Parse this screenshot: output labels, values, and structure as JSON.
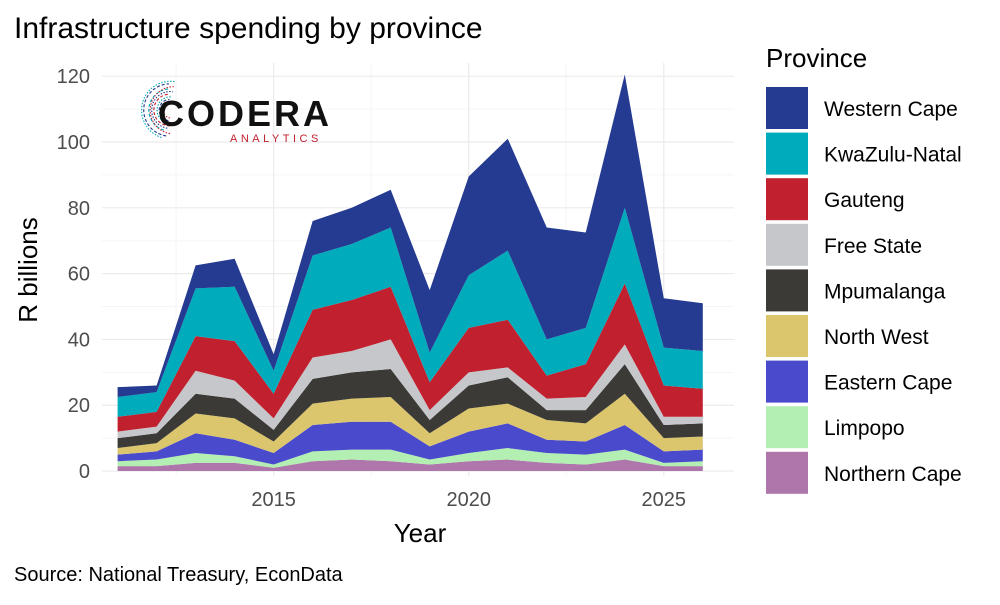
{
  "chart_data": {
    "type": "area",
    "title": "Infrastructure spending by province",
    "xlabel": "Year",
    "ylabel": "R billions",
    "caption": "Source: National Treasury, EconData",
    "legend_title": "Province",
    "legend_position": "right",
    "stacked": true,
    "grid": true,
    "xlim": [
      2010.6,
      2026.8
    ],
    "ylim": [
      -1.5,
      124
    ],
    "x_ticks": [
      2015,
      2020,
      2025
    ],
    "y_ticks": [
      0,
      20,
      40,
      60,
      80,
      100,
      120
    ],
    "x": [
      2011,
      2012,
      2013,
      2014,
      2015,
      2016,
      2017,
      2018,
      2019,
      2020,
      2021,
      2022,
      2023,
      2024,
      2025,
      2026
    ],
    "series": [
      {
        "name": "Northern Cape",
        "color": "#AE76AA",
        "values": [
          1.5,
          1.5,
          2.5,
          2.5,
          1.0,
          3.0,
          3.5,
          3.0,
          2.0,
          3.0,
          3.5,
          2.5,
          2.0,
          3.5,
          1.5,
          1.5
        ]
      },
      {
        "name": "Limpopo",
        "color": "#B3EEB3",
        "values": [
          1.5,
          2.0,
          3.0,
          2.0,
          1.0,
          3.0,
          3.0,
          3.5,
          1.5,
          2.5,
          3.5,
          3.0,
          3.0,
          3.0,
          1.0,
          1.5
        ]
      },
      {
        "name": "Eastern Cape",
        "color": "#4A4ACD",
        "values": [
          2.0,
          2.5,
          6.0,
          5.0,
          3.5,
          8.0,
          8.5,
          8.5,
          4.0,
          6.5,
          7.5,
          4.0,
          4.0,
          7.5,
          3.5,
          3.5
        ]
      },
      {
        "name": "North West",
        "color": "#DBC66E",
        "values": [
          2.0,
          2.5,
          6.0,
          6.5,
          3.5,
          6.5,
          7.0,
          7.5,
          4.0,
          7.0,
          6.0,
          6.0,
          5.5,
          9.5,
          4.0,
          4.0
        ]
      },
      {
        "name": "Mpumalanga",
        "color": "#3C3A36",
        "values": [
          3.0,
          3.0,
          6.0,
          6.0,
          3.5,
          7.5,
          8.0,
          8.5,
          4.0,
          7.0,
          8.0,
          3.0,
          4.0,
          9.0,
          4.0,
          4.0
        ]
      },
      {
        "name": "Free State",
        "color": "#C5C7CB",
        "values": [
          2.0,
          2.0,
          7.0,
          5.5,
          3.5,
          6.5,
          6.5,
          9.0,
          3.0,
          4.0,
          3.0,
          3.5,
          4.0,
          6.0,
          2.5,
          2.0
        ]
      },
      {
        "name": "Gauteng",
        "color": "#C1202F",
        "values": [
          4.5,
          4.5,
          10.5,
          12.0,
          7.5,
          14.5,
          15.5,
          16.0,
          8.5,
          13.5,
          14.5,
          7.0,
          10.0,
          18.5,
          9.5,
          8.5
        ]
      },
      {
        "name": "KwaZulu-Natal",
        "color": "#00ACBC",
        "values": [
          6.0,
          6.0,
          14.5,
          16.5,
          7.0,
          16.5,
          17.0,
          18.0,
          9.0,
          16.0,
          21.0,
          11.0,
          11.0,
          23.0,
          11.5,
          11.5
        ]
      },
      {
        "name": "Western Cape",
        "color": "#253A91",
        "values": [
          3.0,
          2.0,
          7.0,
          8.5,
          5.0,
          10.5,
          11.0,
          11.5,
          19.0,
          30.0,
          34.0,
          34.0,
          29.0,
          40.5,
          15.0,
          14.5
        ]
      }
    ],
    "legend_order": [
      "Western Cape",
      "KwaZulu-Natal",
      "Gauteng",
      "Free State",
      "Mpumalanga",
      "North West",
      "Eastern Cape",
      "Limpopo",
      "Northern Cape"
    ]
  },
  "logo": {
    "name": "CODERA",
    "tagline": "ANALYTICS",
    "colors": [
      "#C1202F",
      "#253A91",
      "#00ACBC"
    ]
  },
  "colors": {
    "grid_major": "#EBEBEB",
    "grid_minor": "#F5F5F5",
    "text": "#000000",
    "tick_text": "#4D4D4D"
  }
}
